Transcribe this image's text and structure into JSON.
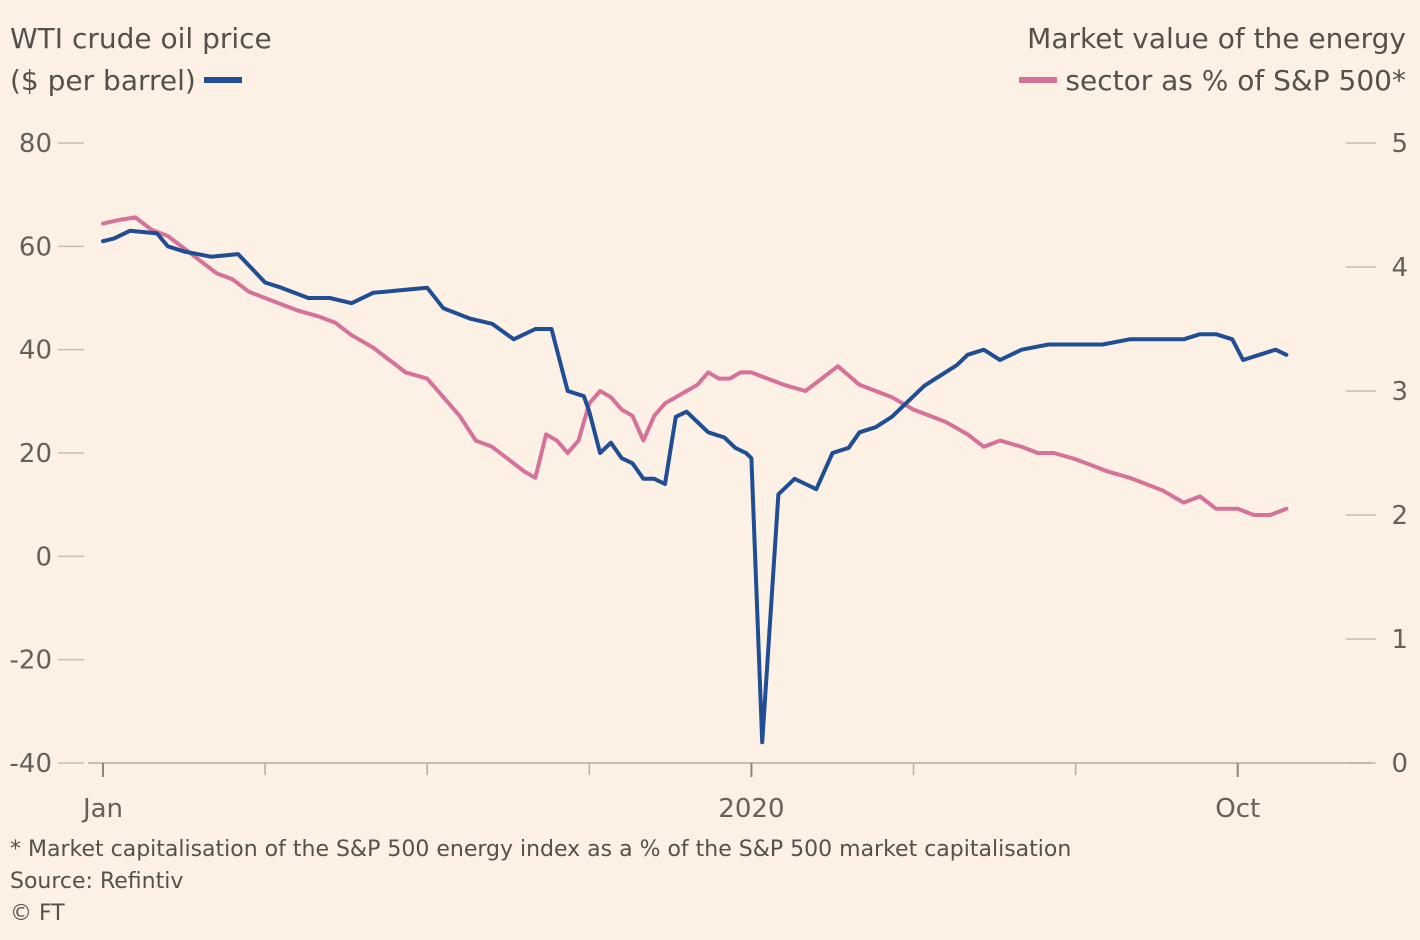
{
  "chart_data": {
    "type": "line",
    "left_axis_title_line1": "WTI crude oil price",
    "left_axis_title_line2": "($ per barrel)",
    "right_axis_title_line1": "Market value of the energy",
    "right_axis_title_line2": "sector as % of S&P 500*",
    "x_ticks": [
      "Jan",
      "2020",
      "Oct"
    ],
    "x_tick_positions": [
      0,
      12,
      21
    ],
    "x_minor_ticks": [
      0,
      3,
      6,
      9,
      12,
      15,
      18,
      21
    ],
    "xlim": [
      0,
      23
    ],
    "y_left": {
      "ticks": [
        "80",
        "60",
        "40",
        "20",
        "0",
        "-20",
        "-40"
      ],
      "values": [
        80,
        60,
        40,
        20,
        0,
        -20,
        -40
      ],
      "ylim": [
        -40,
        80
      ]
    },
    "y_right": {
      "ticks": [
        "5",
        "4",
        "3",
        "2",
        "1",
        "0"
      ],
      "values": [
        5,
        4,
        3,
        2,
        1,
        0
      ],
      "ylim": [
        0,
        5
      ]
    },
    "series": [
      {
        "axis": "left",
        "color": "#1f4e94",
        "x": [
          0,
          0.2,
          0.5,
          1,
          1.2,
          1.5,
          2,
          2.5,
          3,
          3.3,
          3.8,
          4.2,
          4.6,
          5,
          5.5,
          6,
          6.3,
          6.8,
          7.2,
          7.6,
          8,
          8.3,
          8.6,
          8.9,
          9,
          9.2,
          9.4,
          9.6,
          9.8,
          10,
          10.2,
          10.4,
          10.6,
          10.8,
          11,
          11.2,
          11.5,
          11.7,
          11.9,
          12,
          12.2,
          12.5,
          12.8,
          13,
          13.2,
          13.5,
          13.8,
          14,
          14.3,
          14.6,
          14.9,
          15.2,
          15.5,
          15.8,
          16,
          16.3,
          16.6,
          17,
          17.5,
          18,
          18.5,
          19,
          19.5,
          20,
          20.3,
          20.6,
          20.9,
          21,
          21.1,
          21.4,
          21.7,
          21.9
        ],
        "y": [
          61,
          61.5,
          63,
          62.5,
          60,
          59,
          58,
          58.5,
          53,
          52,
          50,
          50,
          49,
          51,
          51.5,
          52,
          48,
          46,
          45,
          42,
          44,
          44,
          32,
          31,
          28,
          20,
          22,
          19,
          18,
          15,
          15,
          14,
          27,
          28,
          26,
          24,
          23,
          21,
          20,
          19,
          -36,
          12,
          15,
          14,
          13,
          20,
          21,
          24,
          25,
          27,
          30,
          33,
          35,
          37,
          39,
          40,
          38,
          40,
          41,
          41,
          41,
          42,
          42,
          42,
          43,
          43,
          42,
          40,
          38,
          39,
          40,
          39
        ],
        "values_note": ""
      },
      {
        "axis": "right",
        "color": "#d6729a",
        "x": [
          0,
          0.3,
          0.6,
          0.9,
          1.2,
          1.5,
          1.8,
          2.1,
          2.4,
          2.7,
          3,
          3.3,
          3.6,
          4,
          4.3,
          4.6,
          5,
          5.3,
          5.6,
          6,
          6.3,
          6.6,
          6.9,
          7.2,
          7.5,
          7.8,
          8,
          8.2,
          8.4,
          8.6,
          8.8,
          9,
          9.2,
          9.4,
          9.6,
          9.8,
          10,
          10.2,
          10.4,
          10.6,
          10.8,
          11,
          11.2,
          11.4,
          11.6,
          11.8,
          12,
          12.3,
          12.6,
          13,
          13.3,
          13.6,
          14,
          14.3,
          14.6,
          15,
          15.3,
          15.6,
          16,
          16.3,
          16.6,
          17,
          17.3,
          17.6,
          18,
          18.3,
          18.6,
          19,
          19.3,
          19.6,
          20,
          20.3,
          20.6,
          21,
          21.3,
          21.6,
          21.9
        ],
        "y": [
          4.35,
          4.38,
          4.4,
          4.3,
          4.25,
          4.15,
          4.05,
          3.95,
          3.9,
          3.8,
          3.75,
          3.7,
          3.65,
          3.6,
          3.55,
          3.45,
          3.35,
          3.25,
          3.15,
          3.1,
          2.95,
          2.8,
          2.6,
          2.55,
          2.45,
          2.35,
          2.3,
          2.65,
          2.6,
          2.5,
          2.6,
          2.9,
          3,
          2.95,
          2.85,
          2.8,
          2.6,
          2.8,
          2.9,
          2.95,
          3.0,
          3.05,
          3.15,
          3.1,
          3.1,
          3.15,
          3.15,
          3.1,
          3.05,
          3.0,
          3.1,
          3.2,
          3.05,
          3.0,
          2.95,
          2.85,
          2.8,
          2.75,
          2.65,
          2.55,
          2.6,
          2.55,
          2.5,
          2.5,
          2.45,
          2.4,
          2.35,
          2.3,
          2.25,
          2.2,
          2.1,
          2.15,
          2.05,
          2.05,
          2.0,
          2.0,
          2.05
        ]
      }
    ]
  },
  "footnote": "* Market capitalisation of the S&P 500 energy index as a % of the S&P 500 market capitalisation",
  "source": "Source: Refintiv",
  "credit": "© FT"
}
